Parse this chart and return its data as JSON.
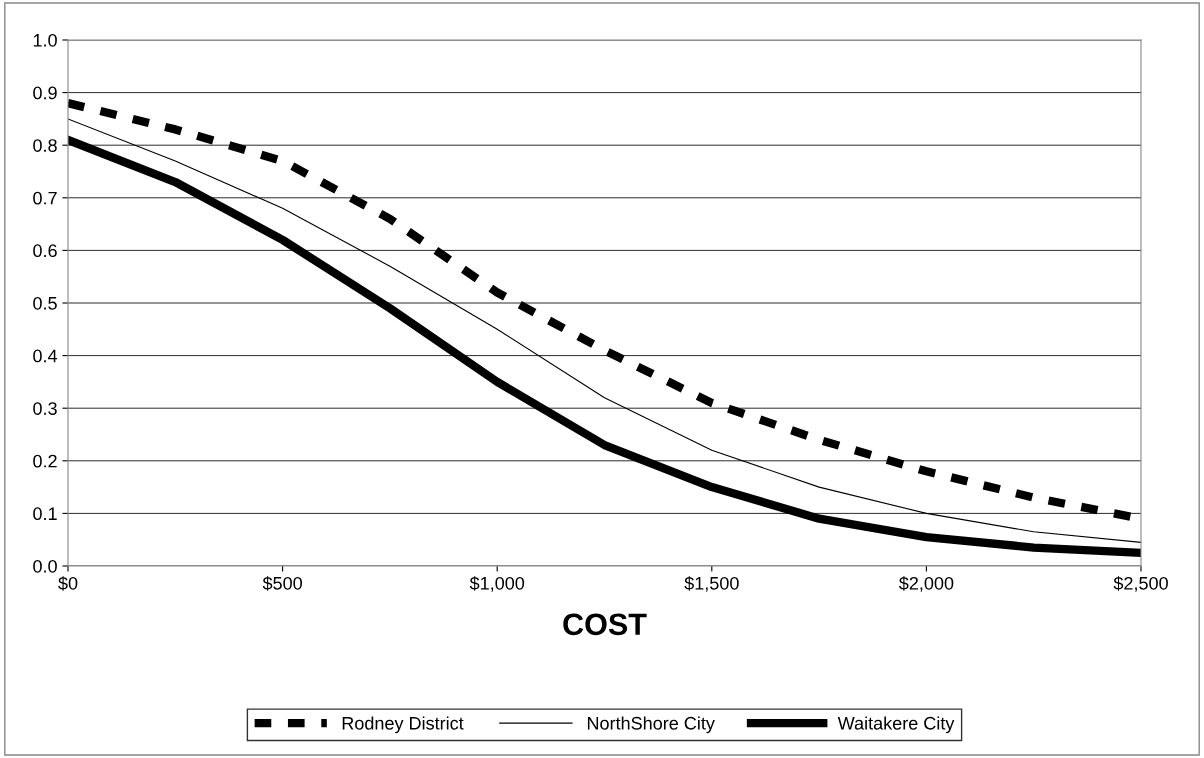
{
  "chart_data": {
    "type": "line",
    "xlabel": "COST",
    "x": [
      0,
      250,
      500,
      750,
      1000,
      1250,
      1500,
      1750,
      2000,
      2250,
      2500
    ],
    "series": [
      {
        "name": "Rodney District",
        "color": "#000000",
        "line_style": "dashed",
        "values": [
          0.88,
          0.83,
          0.77,
          0.66,
          0.52,
          0.41,
          0.31,
          0.24,
          0.18,
          0.13,
          0.09
        ]
      },
      {
        "name": "NorthShore City",
        "color": "#000000",
        "line_style": "solid",
        "values": [
          0.85,
          0.77,
          0.68,
          0.57,
          0.45,
          0.32,
          0.22,
          0.15,
          0.1,
          0.065,
          0.045
        ]
      },
      {
        "name": "Waitakere City",
        "color": "#000000",
        "line_style": "solid",
        "values": [
          0.81,
          0.73,
          0.62,
          0.49,
          0.35,
          0.23,
          0.15,
          0.09,
          0.055,
          0.035,
          0.025
        ]
      }
    ],
    "xlim": [
      0,
      2500
    ],
    "xticks": [
      {
        "value": 0,
        "label": "$0"
      },
      {
        "value": 500,
        "label": "$500"
      },
      {
        "value": 1000,
        "label": "$1,000"
      },
      {
        "value": 1500,
        "label": "$1,500"
      },
      {
        "value": 2000,
        "label": "$2,000"
      },
      {
        "value": 2500,
        "label": "$2,500"
      }
    ],
    "ylim": [
      0,
      1
    ],
    "yticks": [
      {
        "value": 0,
        "label": "0.0"
      },
      {
        "value": 0.1,
        "label": "0.1"
      },
      {
        "value": 0.2,
        "label": "0.2"
      },
      {
        "value": 0.3,
        "label": "0.3"
      },
      {
        "value": 0.4,
        "label": "0.4"
      },
      {
        "value": 0.5,
        "label": "0.5"
      },
      {
        "value": 0.6,
        "label": "0.6"
      },
      {
        "value": 0.7,
        "label": "0.7"
      },
      {
        "value": 0.8,
        "label": "0.8"
      },
      {
        "value": 0.9,
        "label": "0.9"
      },
      {
        "value": 1.0,
        "label": "1.0"
      }
    ],
    "grid": "y",
    "legend": "bottom",
    "marker": "none"
  }
}
